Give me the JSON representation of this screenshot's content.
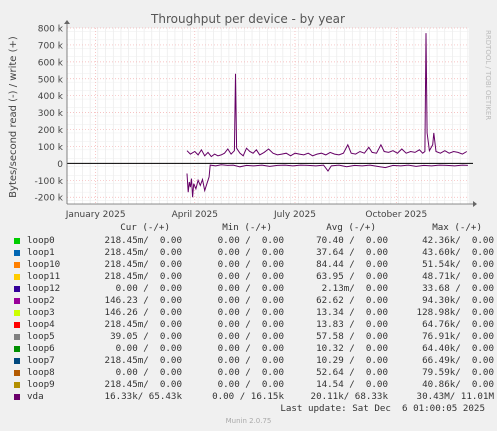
{
  "chart_data": {
    "type": "line",
    "title": "Throughput per device - by year",
    "ylabel": "Bytes/second read (-) / write (+)",
    "watermark": "RRDTOOL / TOBI OETIKER",
    "ylim": [
      -240000,
      800000
    ],
    "yticks": [
      {
        "value": 800000,
        "label": "800 k"
      },
      {
        "value": 700000,
        "label": "700 k"
      },
      {
        "value": 600000,
        "label": "600 k"
      },
      {
        "value": 500000,
        "label": "500 k"
      },
      {
        "value": 400000,
        "label": "400 k"
      },
      {
        "value": 300000,
        "label": "300 k"
      },
      {
        "value": 200000,
        "label": "200 k"
      },
      {
        "value": 100000,
        "label": "100 k"
      },
      {
        "value": 0,
        "label": "0"
      },
      {
        "value": -100000,
        "label": "-100 k"
      },
      {
        "value": -200000,
        "label": "-200 k"
      }
    ],
    "xrange": [
      "2024-12-06",
      "2025-12-06"
    ],
    "xticks": [
      {
        "date": "2025-01-01",
        "label": "January 2025"
      },
      {
        "date": "2025-04-01",
        "label": "April 2025"
      },
      {
        "date": "2025-07-01",
        "label": "July 2025"
      },
      {
        "date": "2025-10-01",
        "label": "October 2025"
      }
    ],
    "grid": true,
    "series": [
      {
        "name": "vda",
        "color": "#660066",
        "write": [
          [
            "2025-03-25",
            75000
          ],
          [
            "2025-03-28",
            55000
          ],
          [
            "2025-04-01",
            70000
          ],
          [
            "2025-04-04",
            50000
          ],
          [
            "2025-04-07",
            80000
          ],
          [
            "2025-04-10",
            45000
          ],
          [
            "2025-04-13",
            65000
          ],
          [
            "2025-04-16",
            40000
          ],
          [
            "2025-04-19",
            55000
          ],
          [
            "2025-04-22",
            45000
          ],
          [
            "2025-04-25",
            50000
          ],
          [
            "2025-04-28",
            60000
          ],
          [
            "2025-05-01",
            85000
          ],
          [
            "2025-05-04",
            55000
          ],
          [
            "2025-05-07",
            75000
          ],
          [
            "2025-05-08",
            530000
          ],
          [
            "2025-05-09",
            90000
          ],
          [
            "2025-05-12",
            60000
          ],
          [
            "2025-05-15",
            45000
          ],
          [
            "2025-05-18",
            90000
          ],
          [
            "2025-05-21",
            70000
          ],
          [
            "2025-05-24",
            60000
          ],
          [
            "2025-05-27",
            80000
          ],
          [
            "2025-05-30",
            50000
          ],
          [
            "2025-06-03",
            65000
          ],
          [
            "2025-06-07",
            85000
          ],
          [
            "2025-06-11",
            60000
          ],
          [
            "2025-06-15",
            50000
          ],
          [
            "2025-06-19",
            55000
          ],
          [
            "2025-06-23",
            60000
          ],
          [
            "2025-06-27",
            45000
          ],
          [
            "2025-07-01",
            60000
          ],
          [
            "2025-07-05",
            55000
          ],
          [
            "2025-07-09",
            50000
          ],
          [
            "2025-07-13",
            60000
          ],
          [
            "2025-07-17",
            45000
          ],
          [
            "2025-07-21",
            55000
          ],
          [
            "2025-07-25",
            60000
          ],
          [
            "2025-07-29",
            50000
          ],
          [
            "2025-08-02",
            65000
          ],
          [
            "2025-08-06",
            55000
          ],
          [
            "2025-08-10",
            50000
          ],
          [
            "2025-08-14",
            60000
          ],
          [
            "2025-08-18",
            110000
          ],
          [
            "2025-08-21",
            60000
          ],
          [
            "2025-08-25",
            55000
          ],
          [
            "2025-08-29",
            70000
          ],
          [
            "2025-09-02",
            60000
          ],
          [
            "2025-09-06",
            95000
          ],
          [
            "2025-09-09",
            65000
          ],
          [
            "2025-09-13",
            60000
          ],
          [
            "2025-09-17",
            110000
          ],
          [
            "2025-09-20",
            70000
          ],
          [
            "2025-09-24",
            65000
          ],
          [
            "2025-09-28",
            75000
          ],
          [
            "2025-10-02",
            60000
          ],
          [
            "2025-10-06",
            85000
          ],
          [
            "2025-10-10",
            60000
          ],
          [
            "2025-10-14",
            70000
          ],
          [
            "2025-10-18",
            65000
          ],
          [
            "2025-10-22",
            80000
          ],
          [
            "2025-10-25",
            60000
          ],
          [
            "2025-10-27",
            70000
          ],
          [
            "2025-10-28",
            770000
          ],
          [
            "2025-10-29",
            180000
          ],
          [
            "2025-10-31",
            75000
          ],
          [
            "2025-11-03",
            110000
          ],
          [
            "2025-11-04",
            180000
          ],
          [
            "2025-11-06",
            70000
          ],
          [
            "2025-11-10",
            60000
          ],
          [
            "2025-11-14",
            75000
          ],
          [
            "2025-11-18",
            60000
          ],
          [
            "2025-11-22",
            70000
          ],
          [
            "2025-11-26",
            65000
          ],
          [
            "2025-11-30",
            55000
          ],
          [
            "2025-12-04",
            70000
          ]
        ],
        "read": [
          [
            "2025-03-25",
            -60000
          ],
          [
            "2025-03-26",
            -170000
          ],
          [
            "2025-03-27",
            -110000
          ],
          [
            "2025-03-28",
            -140000
          ],
          [
            "2025-03-29",
            -90000
          ],
          [
            "2025-03-30",
            -200000
          ],
          [
            "2025-03-31",
            -120000
          ],
          [
            "2025-04-02",
            -150000
          ],
          [
            "2025-04-04",
            -100000
          ],
          [
            "2025-04-06",
            -130000
          ],
          [
            "2025-04-08",
            -95000
          ],
          [
            "2025-04-10",
            -160000
          ],
          [
            "2025-04-12",
            -120000
          ],
          [
            "2025-04-14",
            -80000
          ],
          [
            "2025-04-15",
            -10000
          ],
          [
            "2025-04-20",
            -15000
          ],
          [
            "2025-04-25",
            -8000
          ],
          [
            "2025-05-01",
            -12000
          ],
          [
            "2025-05-06",
            -10000
          ],
          [
            "2025-05-12",
            -20000
          ],
          [
            "2025-05-18",
            -12000
          ],
          [
            "2025-05-24",
            -15000
          ],
          [
            "2025-06-01",
            -10000
          ],
          [
            "2025-06-08",
            -18000
          ],
          [
            "2025-06-15",
            -12000
          ],
          [
            "2025-06-22",
            -10000
          ],
          [
            "2025-06-29",
            -15000
          ],
          [
            "2025-07-06",
            -10000
          ],
          [
            "2025-07-13",
            -12000
          ],
          [
            "2025-07-20",
            -15000
          ],
          [
            "2025-07-27",
            -10000
          ],
          [
            "2025-07-31",
            -45000
          ],
          [
            "2025-08-03",
            -15000
          ],
          [
            "2025-08-10",
            -10000
          ],
          [
            "2025-08-17",
            -20000
          ],
          [
            "2025-08-24",
            -12000
          ],
          [
            "2025-08-31",
            -15000
          ],
          [
            "2025-09-07",
            -10000
          ],
          [
            "2025-09-14",
            -18000
          ],
          [
            "2025-09-21",
            -25000
          ],
          [
            "2025-09-28",
            -12000
          ],
          [
            "2025-10-05",
            -15000
          ],
          [
            "2025-10-12",
            -10000
          ],
          [
            "2025-10-19",
            -18000
          ],
          [
            "2025-10-26",
            -12000
          ],
          [
            "2025-11-02",
            -15000
          ],
          [
            "2025-11-09",
            -10000
          ],
          [
            "2025-11-16",
            -12000
          ],
          [
            "2025-11-23",
            -15000
          ],
          [
            "2025-11-30",
            -10000
          ],
          [
            "2025-12-05",
            -12000
          ]
        ]
      }
    ]
  },
  "legend": {
    "headers": {
      "cur": "Cur (-/+)",
      "min": "Min (-/+)",
      "avg": "Avg (-/+)",
      "max": "Max (-/+)"
    },
    "rows": [
      {
        "name": "loop0",
        "color": "#00cc00",
        "cur": "218.45m/  0.00",
        "min": "0.00 /  0.00",
        "avg": "70.40 /  0.00",
        "max": "42.36k/  0.00"
      },
      {
        "name": "loop1",
        "color": "#0066b3",
        "cur": "218.45m/  0.00",
        "min": "0.00 /  0.00",
        "avg": "37.64 /  0.00",
        "max": "43.60k/  0.00"
      },
      {
        "name": "loop10",
        "color": "#ff8000",
        "cur": "218.45m/  0.00",
        "min": "0.00 /  0.00",
        "avg": "84.44 /  0.00",
        "max": "51.54k/  0.00"
      },
      {
        "name": "loop11",
        "color": "#ffcc00",
        "cur": "218.45m/  0.00",
        "min": "0.00 /  0.00",
        "avg": "63.95 /  0.00",
        "max": "48.71k/  0.00"
      },
      {
        "name": "loop12",
        "color": "#330099",
        "cur": "0.00 /  0.00",
        "min": "0.00 /  0.00",
        "avg": "2.13m/  0.00",
        "max": "33.68 /  0.00"
      },
      {
        "name": "loop2",
        "color": "#990099",
        "cur": "146.23 /  0.00",
        "min": "0.00 /  0.00",
        "avg": "62.62 /  0.00",
        "max": "94.30k/  0.00"
      },
      {
        "name": "loop3",
        "color": "#ccff00",
        "cur": "146.26 /  0.00",
        "min": "0.00 /  0.00",
        "avg": "13.34 /  0.00",
        "max": "128.98k/  0.00"
      },
      {
        "name": "loop4",
        "color": "#ff0000",
        "cur": "218.45m/  0.00",
        "min": "0.00 /  0.00",
        "avg": "13.83 /  0.00",
        "max": "64.76k/  0.00"
      },
      {
        "name": "loop5",
        "color": "#808080",
        "cur": "39.05 /  0.00",
        "min": "0.00 /  0.00",
        "avg": "57.58 /  0.00",
        "max": "76.91k/  0.00"
      },
      {
        "name": "loop6",
        "color": "#008f00",
        "cur": "0.00 /  0.00",
        "min": "0.00 /  0.00",
        "avg": "10.32 /  0.00",
        "max": "64.40k/  0.00"
      },
      {
        "name": "loop7",
        "color": "#00487d",
        "cur": "218.45m/  0.00",
        "min": "0.00 /  0.00",
        "avg": "10.29 /  0.00",
        "max": "66.49k/  0.00"
      },
      {
        "name": "loop8",
        "color": "#b35a00",
        "cur": "0.00 /  0.00",
        "min": "0.00 /  0.00",
        "avg": "52.64 /  0.00",
        "max": "79.59k/  0.00"
      },
      {
        "name": "loop9",
        "color": "#b38f00",
        "cur": "218.45m/  0.00",
        "min": "0.00 /  0.00",
        "avg": "14.54 /  0.00",
        "max": "40.86k/  0.00"
      },
      {
        "name": "vda",
        "color": "#6b006b",
        "cur": "16.33k/ 65.43k",
        "min": "0.00 / 16.15k",
        "avg": "20.11k/ 68.33k",
        "max": "30.43M/ 11.01M"
      }
    ]
  },
  "last_update": "Last update: Sat Dec  6 01:00:05 2025",
  "footer": "Munin 2.0.75"
}
